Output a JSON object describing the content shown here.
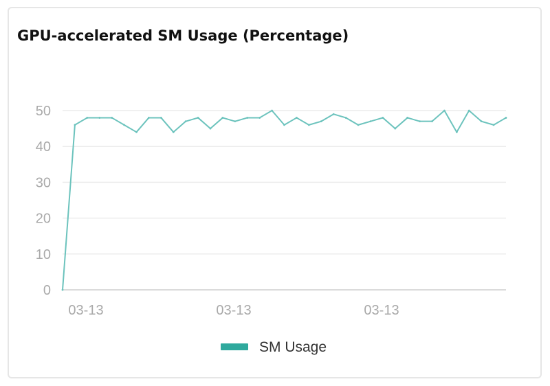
{
  "chart_data": {
    "type": "line",
    "title": "GPU-accelerated SM Usage (Percentage)",
    "xlabel": "",
    "ylabel": "",
    "ylim": [
      0,
      50
    ],
    "y_ticks": [
      "0",
      "10",
      "20",
      "30",
      "40",
      "50"
    ],
    "x_tick_labels": [
      "03-13",
      "03-13",
      "03-13"
    ],
    "grid": true,
    "legend_position": "bottom-center",
    "series": [
      {
        "name": "SM Usage",
        "color": "#6cc3bd",
        "values": [
          0,
          46,
          48,
          48,
          48,
          46,
          44,
          48,
          48,
          44,
          47,
          48,
          45,
          48,
          47,
          48,
          48,
          50,
          46,
          48,
          46,
          47,
          49,
          48,
          46,
          47,
          48,
          45,
          48,
          47,
          47,
          50,
          44,
          50,
          47,
          46,
          48
        ]
      }
    ],
    "legend": [
      {
        "label": "SM Usage",
        "color": "#2fa99d"
      }
    ]
  }
}
